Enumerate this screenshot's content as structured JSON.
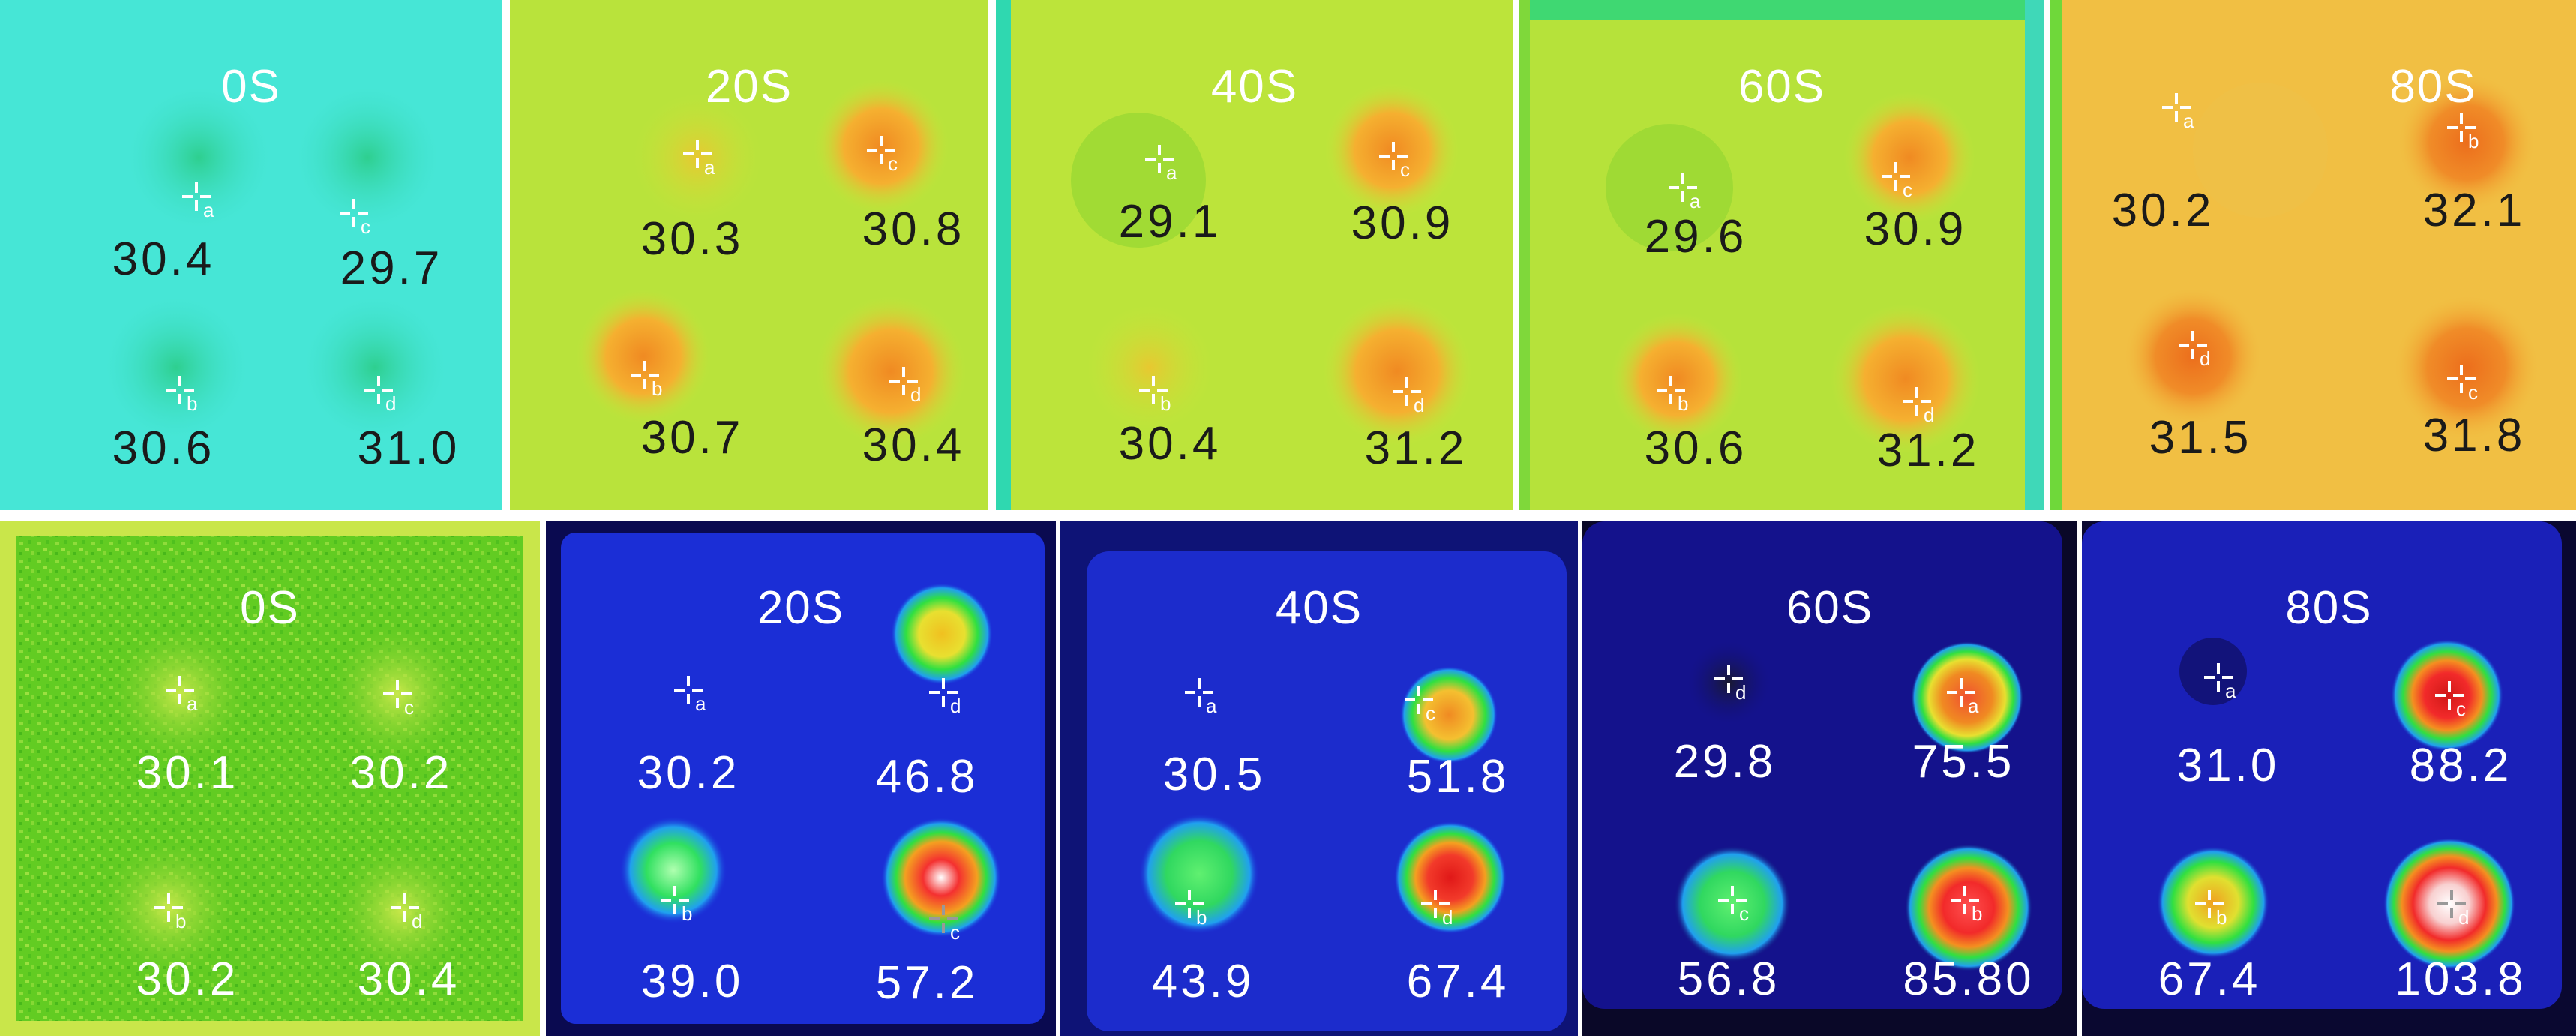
{
  "figure": {
    "rows": [
      {
        "name": "top-row",
        "panels": [
          {
            "title": "0S",
            "points": [
              {
                "label": "a",
                "value": "30.4"
              },
              {
                "label": "c",
                "value": "29.7"
              },
              {
                "label": "b",
                "value": "30.6"
              },
              {
                "label": "d",
                "value": "31.0"
              }
            ]
          },
          {
            "title": "20S",
            "points": [
              {
                "label": "a",
                "value": "30.3"
              },
              {
                "label": "c",
                "value": "30.8"
              },
              {
                "label": "b",
                "value": "30.7"
              },
              {
                "label": "d",
                "value": "30.4"
              }
            ]
          },
          {
            "title": "40S",
            "points": [
              {
                "label": "a",
                "value": "29.1"
              },
              {
                "label": "c",
                "value": "30.9"
              },
              {
                "label": "b",
                "value": "30.4"
              },
              {
                "label": "d",
                "value": "31.2"
              }
            ]
          },
          {
            "title": "60S",
            "points": [
              {
                "label": "a",
                "value": "29.6"
              },
              {
                "label": "c",
                "value": "30.9"
              },
              {
                "label": "b",
                "value": "30.6"
              },
              {
                "label": "d",
                "value": "31.2"
              }
            ]
          },
          {
            "title": "80S",
            "points": [
              {
                "label": "a",
                "value": "30.2"
              },
              {
                "label": "b",
                "value": "32.1"
              },
              {
                "label": "d",
                "value": "31.5"
              },
              {
                "label": "c",
                "value": "31.8"
              }
            ]
          }
        ]
      },
      {
        "name": "bottom-row",
        "panels": [
          {
            "title": "0S",
            "points": [
              {
                "label": "a",
                "value": "30.1"
              },
              {
                "label": "c",
                "value": "30.2"
              },
              {
                "label": "b",
                "value": "30.2"
              },
              {
                "label": "d",
                "value": "30.4"
              }
            ]
          },
          {
            "title": "20S",
            "points": [
              {
                "label": "a",
                "value": "30.2"
              },
              {
                "label": "d",
                "value": "46.8"
              },
              {
                "label": "b",
                "value": "39.0"
              },
              {
                "label": "c",
                "value": "57.2"
              }
            ]
          },
          {
            "title": "40S",
            "points": [
              {
                "label": "a",
                "value": "30.5"
              },
              {
                "label": "c",
                "value": "51.8"
              },
              {
                "label": "b",
                "value": "43.9"
              },
              {
                "label": "d",
                "value": "67.4"
              }
            ]
          },
          {
            "title": "60S",
            "points": [
              {
                "label": "d",
                "value": "29.8"
              },
              {
                "label": "a",
                "value": "75.5"
              },
              {
                "label": "c",
                "value": "56.8"
              },
              {
                "label": "b",
                "value": "85.80"
              }
            ]
          },
          {
            "title": "80S",
            "points": [
              {
                "label": "a",
                "value": "31.0"
              },
              {
                "label": "c",
                "value": "88.2"
              },
              {
                "label": "b",
                "value": "67.4"
              },
              {
                "label": "d",
                "value": "103.8"
              }
            ]
          }
        ]
      }
    ]
  },
  "colors": {
    "cyan_bg": "#3fe5d4",
    "yellow_green_bg": "#b8e83a",
    "orange_bg": "#f2b43a",
    "noise_green_bg": "#6fd02a",
    "blue_bg": "#1a2ad8",
    "navy_bg": "#12107a"
  }
}
